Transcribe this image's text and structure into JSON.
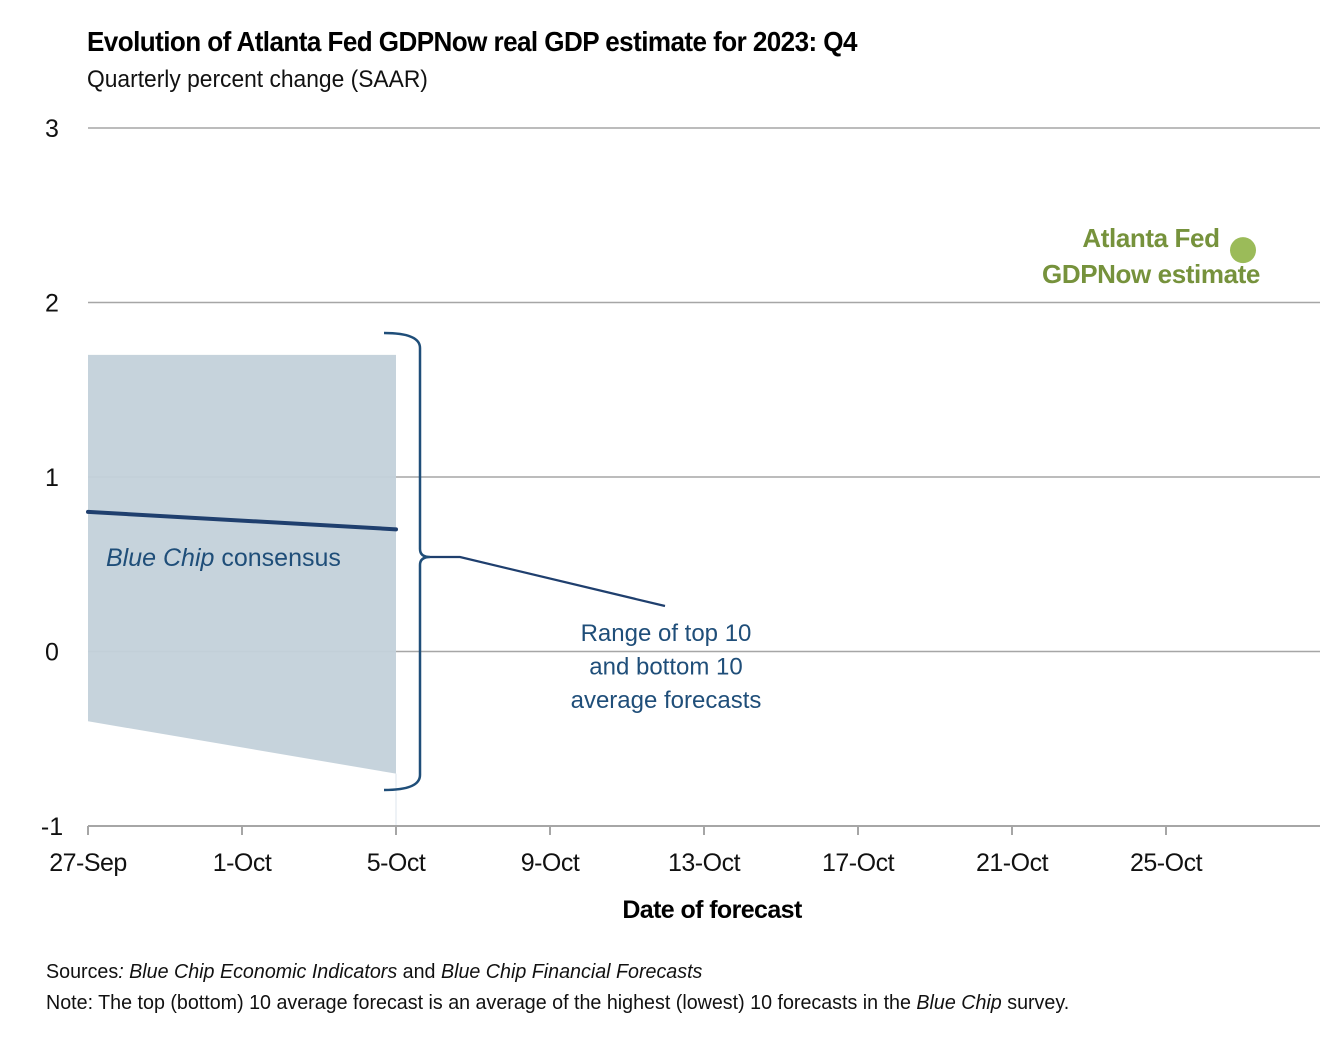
{
  "chart_data": {
    "type": "line",
    "title": "Evolution of Atlanta Fed GDPNow real GDP estimate for 2023: Q4",
    "subtitle": "Quarterly percent change (SAAR)",
    "xlabel": "Date of forecast",
    "ylabel": "",
    "ylim": [
      -1,
      3
    ],
    "yticks": [
      "3",
      "2",
      "1",
      "0",
      "-1"
    ],
    "ytick_values": [
      3,
      2,
      1,
      0,
      -1
    ],
    "xlim_days": [
      0,
      32
    ],
    "xticks": [
      {
        "label": "27-Sep",
        "day": 0
      },
      {
        "label": "1-Oct",
        "day": 4
      },
      {
        "label": "5-Oct",
        "day": 8
      },
      {
        "label": "9-Oct",
        "day": 12
      },
      {
        "label": "13-Oct",
        "day": 16
      },
      {
        "label": "17-Oct",
        "day": 20
      },
      {
        "label": "21-Oct",
        "day": 24
      },
      {
        "label": "25-Oct",
        "day": 28
      }
    ],
    "grid": true,
    "series": [
      {
        "name": "Blue Chip consensus",
        "type": "line",
        "color": "#1f3f6e",
        "points": [
          {
            "date": "27-Sep",
            "day": 0,
            "value": 0.8
          },
          {
            "date": "5-Oct",
            "day": 8,
            "value": 0.7
          }
        ]
      },
      {
        "name": "Range of top 10 and bottom 10 average forecasts",
        "type": "area",
        "color": "#c3d1da",
        "upper": [
          {
            "date": "27-Sep",
            "day": 0,
            "value": 1.7
          },
          {
            "date": "5-Oct",
            "day": 8,
            "value": 1.7
          }
        ],
        "lower": [
          {
            "date": "27-Sep",
            "day": 0,
            "value": -0.4
          },
          {
            "date": "5-Oct",
            "day": 8,
            "value": -0.7
          }
        ]
      },
      {
        "name": "Atlanta Fed GDPNow estimate",
        "type": "scatter",
        "color": "#9bbb59",
        "points": [
          {
            "date": "27-Oct",
            "day": 30,
            "value": 2.3
          }
        ]
      }
    ],
    "annotations": {
      "consensus_label_italic": "Blue Chip",
      "consensus_label_rest": " consensus",
      "range_label_lines": [
        "Range of top 10",
        "and bottom 10",
        "average forecasts"
      ],
      "gdpnow_label_lines": [
        "Atlanta Fed",
        "GDPNow estimate"
      ]
    },
    "colors": {
      "text_dark": "#000000",
      "annotation_blue": "#1f4e79",
      "gdpnow_green": "#76923c",
      "gridline": "#a6a6a6"
    }
  },
  "footer": {
    "sources_label": "Sources",
    "sources_colon": ": ",
    "sources_italic_1": "Blue Chip Economic Indicators",
    "sources_mid": " and ",
    "sources_italic_2": "Blue Chip Financial Forecasts",
    "note_label": "Note:",
    "note_text_1": " The top (bottom) 10 average forecast is an average of the highest (lowest) 10 forecasts in the ",
    "note_italic": "Blue Chip",
    "note_text_2": " survey."
  }
}
